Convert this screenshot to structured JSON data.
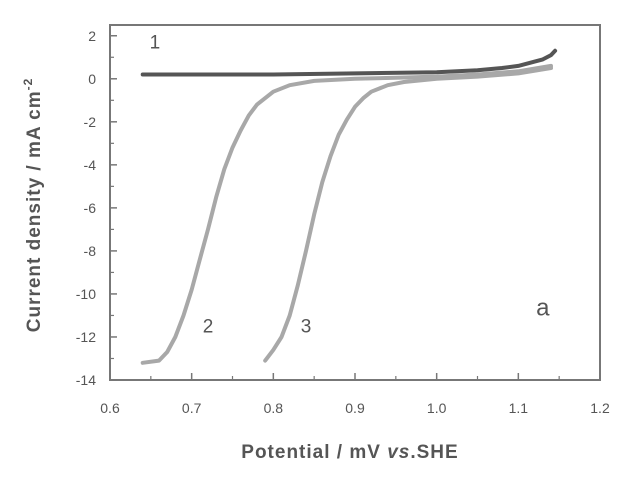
{
  "chart_data": {
    "type": "line",
    "xlabel_main": "Potential / mV ",
    "xlabel_italic": "vs",
    "xlabel_tail": ".SHE",
    "ylabel_main": "Current density / mA cm",
    "ylabel_sup": "-2",
    "panel_label": "a",
    "xlim": [
      0.6,
      1.2
    ],
    "ylim": [
      -14,
      2.5
    ],
    "x_ticks": [
      0.6,
      0.7,
      0.8,
      0.9,
      1.0,
      1.1,
      1.2
    ],
    "x_tick_labels": [
      "0.6",
      "0.7",
      "0.8",
      "0.9",
      "1.0",
      "1.1",
      "1.2"
    ],
    "y_ticks": [
      2,
      0,
      -2,
      -4,
      -6,
      -8,
      -10,
      -12,
      -14
    ],
    "y_tick_labels": [
      "2",
      "0",
      "-2",
      "-4",
      "-6",
      "-8",
      "-10",
      "-12",
      "-14"
    ],
    "grid": false,
    "series": [
      {
        "label": "1",
        "color": "#555555",
        "x": [
          0.64,
          0.7,
          0.8,
          0.9,
          1.0,
          1.05,
          1.08,
          1.1,
          1.12,
          1.13,
          1.14,
          1.145
        ],
        "y": [
          0.2,
          0.2,
          0.2,
          0.25,
          0.3,
          0.4,
          0.5,
          0.6,
          0.8,
          0.9,
          1.1,
          1.3
        ]
      },
      {
        "label": "2",
        "color": "#a8a8a8",
        "x": [
          0.64,
          0.66,
          0.67,
          0.68,
          0.69,
          0.7,
          0.71,
          0.72,
          0.73,
          0.74,
          0.75,
          0.76,
          0.77,
          0.78,
          0.8,
          0.82,
          0.85,
          0.9,
          0.95,
          1.0,
          1.05,
          1.1,
          1.14
        ],
        "y": [
          -13.2,
          -13.1,
          -12.7,
          -12.0,
          -11.0,
          -9.8,
          -8.4,
          -7.0,
          -5.5,
          -4.2,
          -3.2,
          -2.4,
          -1.7,
          -1.2,
          -0.6,
          -0.3,
          -0.1,
          0.0,
          0.05,
          0.1,
          0.2,
          0.35,
          0.6
        ]
      },
      {
        "label": "3",
        "color": "#a8a8a8",
        "x": [
          0.79,
          0.8,
          0.81,
          0.82,
          0.83,
          0.84,
          0.85,
          0.86,
          0.87,
          0.88,
          0.89,
          0.9,
          0.91,
          0.92,
          0.94,
          0.96,
          1.0,
          1.05,
          1.1,
          1.14
        ],
        "y": [
          -13.1,
          -12.6,
          -12.0,
          -11.0,
          -9.6,
          -8.0,
          -6.3,
          -4.8,
          -3.6,
          -2.6,
          -1.9,
          -1.3,
          -0.9,
          -0.6,
          -0.3,
          -0.15,
          0.0,
          0.1,
          0.25,
          0.5
        ]
      }
    ],
    "curve_labels": [
      {
        "text": "1",
        "x": 0.655,
        "y": 1.4
      },
      {
        "text": "2",
        "x": 0.72,
        "y": -11.8
      },
      {
        "text": "3",
        "x": 0.84,
        "y": -11.8
      }
    ],
    "panel_label_pos": {
      "x": 1.13,
      "y": -11.0
    }
  }
}
